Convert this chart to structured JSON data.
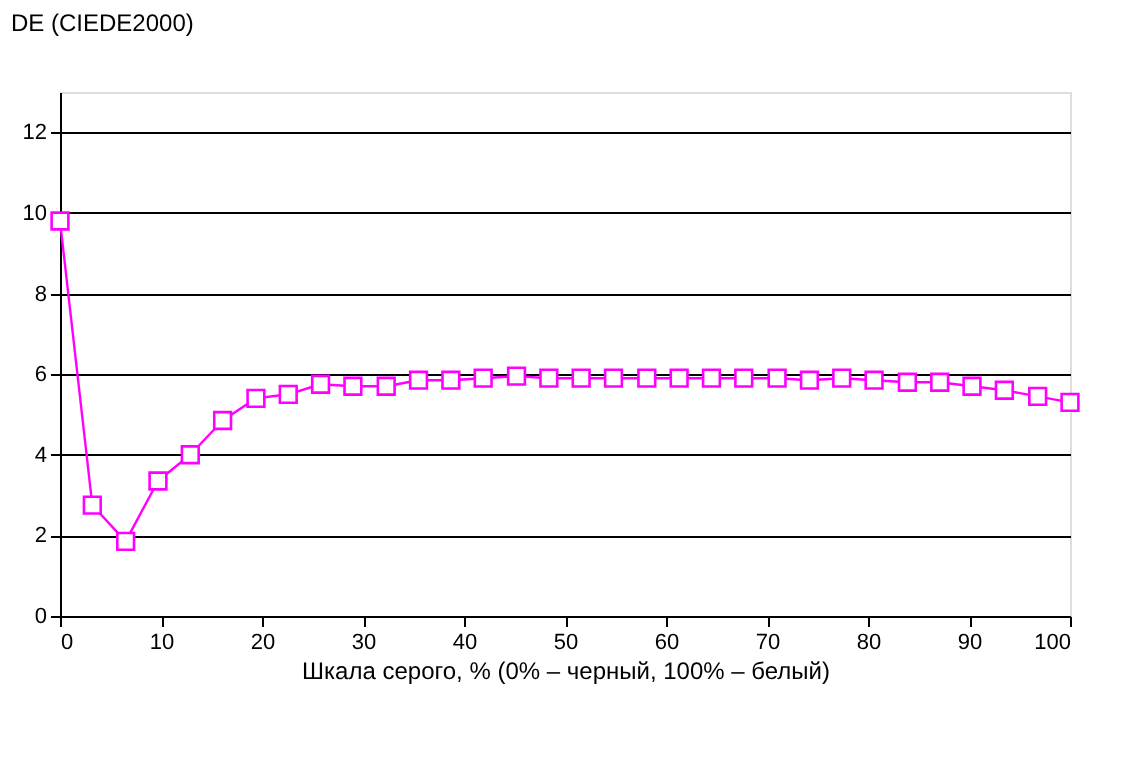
{
  "chart_data": {
    "type": "line",
    "ylabel": "DE (CIEDE2000)",
    "xlabel": "Шкала серого, % (0% – черный, 100% – белый)",
    "x": [
      0,
      3.2,
      6.5,
      9.7,
      12.9,
      16.1,
      19.4,
      22.6,
      25.8,
      29,
      32.3,
      35.5,
      38.7,
      41.9,
      45.2,
      48.4,
      51.6,
      54.8,
      58.1,
      61.3,
      64.5,
      67.7,
      71,
      74.2,
      77.4,
      80.6,
      83.9,
      87.1,
      90.3,
      93.5,
      96.8,
      100
    ],
    "series": [
      {
        "color": "#ff00ff",
        "values": [
          9.8,
          2.75,
          1.85,
          3.35,
          4.0,
          4.85,
          5.4,
          5.5,
          5.75,
          5.7,
          5.7,
          5.85,
          5.85,
          5.9,
          5.95,
          5.9,
          5.9,
          5.9,
          5.9,
          5.9,
          5.9,
          5.9,
          5.9,
          5.85,
          5.9,
          5.85,
          5.8,
          5.8,
          5.7,
          5.6,
          5.45,
          5.3
        ]
      }
    ],
    "xlim": [
      0,
      100
    ],
    "xticks": [
      0,
      10,
      20,
      30,
      40,
      50,
      60,
      70,
      80,
      90,
      100
    ],
    "ylim": [
      0,
      13
    ],
    "yticks": [
      0,
      2,
      4,
      6,
      8,
      10,
      12
    ],
    "grid": "y",
    "marker": "square",
    "line_style": "solid"
  }
}
